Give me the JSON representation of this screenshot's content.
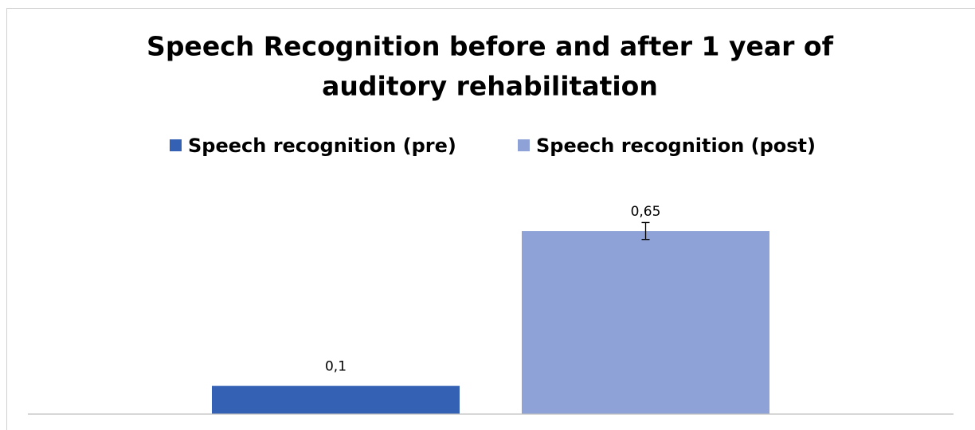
{
  "chart_data": {
    "type": "bar",
    "title_lines": [
      "Speech Recognition before and after 1 year of",
      "auditory rehabilitation"
    ],
    "categories": [
      null
    ],
    "series": [
      {
        "name": "Speech recognition (pre)",
        "color": "#3561b5",
        "values": [
          0.1
        ],
        "value_labels": [
          "0,1"
        ]
      },
      {
        "name": "Speech recognition (post)",
        "color": "#8ea2d8",
        "values": [
          0.65
        ],
        "value_labels": [
          "0,65"
        ],
        "errors": [
          0.03
        ]
      }
    ],
    "ylim": [
      0,
      0.8
    ],
    "legend": "top",
    "grid": false
  }
}
